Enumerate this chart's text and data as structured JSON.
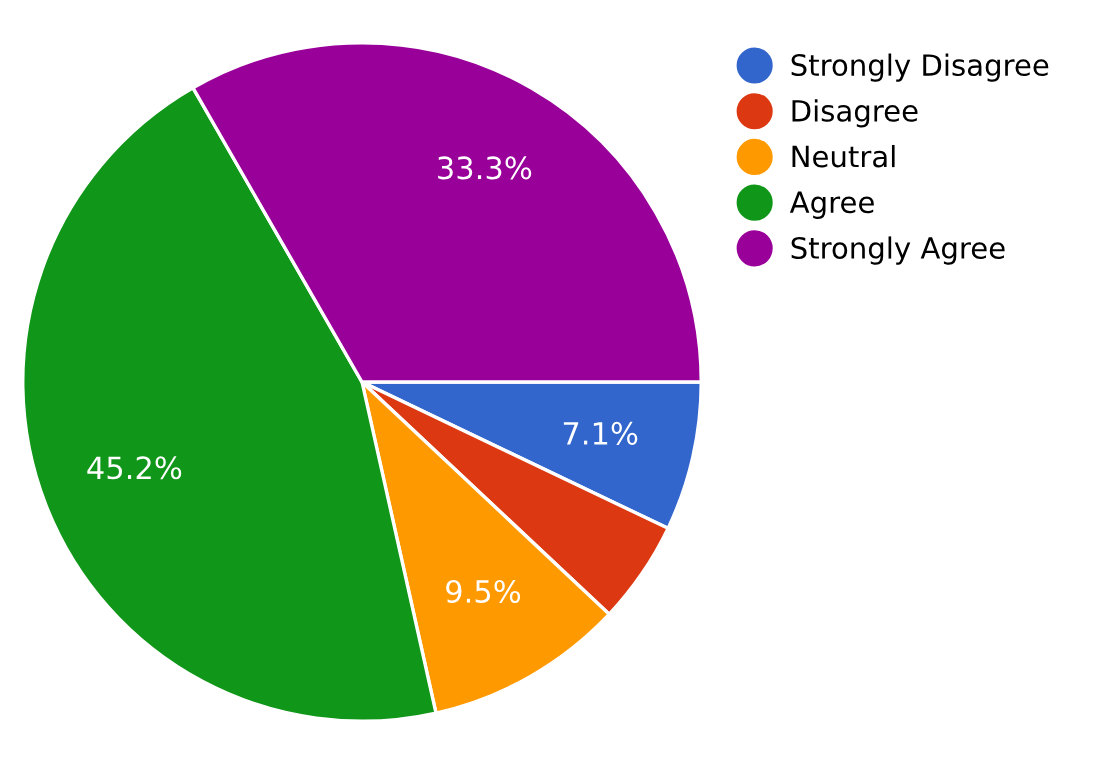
{
  "chart_data": {
    "type": "pie",
    "categories": [
      "Strongly Disagree",
      "Disagree",
      "Neutral",
      "Agree",
      "Strongly Agree"
    ],
    "values": [
      7.1,
      4.9,
      9.5,
      45.2,
      33.3
    ],
    "value_labels": [
      "7.1%",
      null,
      "9.5%",
      "45.2%",
      "33.3%"
    ],
    "colors": [
      "#3366cc",
      "#dc3912",
      "#ff9900",
      "#109618",
      "#990099"
    ],
    "legend": "right"
  }
}
